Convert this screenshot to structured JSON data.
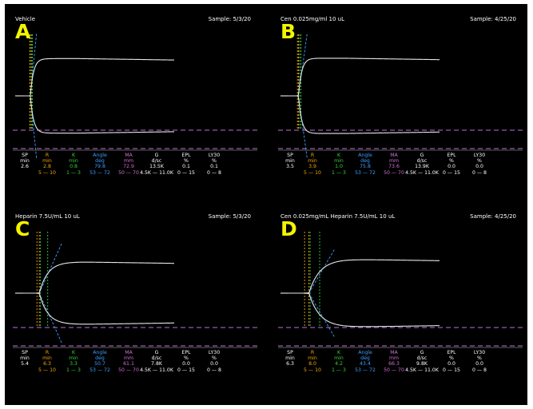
{
  "colors": {
    "background": "#000000",
    "trace": "#e8e8e8",
    "letter": "#f4f400",
    "reference_dashed": "#c070d8",
    "SP": "#ffffff",
    "R": "#f0a800",
    "K": "#38d038",
    "Angle": "#3aa0ff",
    "MA": "#d070d0",
    "G": "#ffffff",
    "EPL": "#ffffff",
    "LY30": "#ffffff"
  },
  "chart_data": [
    {
      "type": "line",
      "panel_letter": "A",
      "title": "Vehicle",
      "sample": "Sample: 5/3/20",
      "metrics": [
        {
          "name": "SP",
          "unit": "min",
          "value": "2.6",
          "range": ""
        },
        {
          "name": "R",
          "unit": "min",
          "value": "2.8",
          "range": "5 — 10"
        },
        {
          "name": "K",
          "unit": "min",
          "value": "0.8",
          "range": "1 — 3"
        },
        {
          "name": "Angle",
          "unit": "deg",
          "value": "79.8",
          "range": "53 — 72"
        },
        {
          "name": "MA",
          "unit": "mm",
          "value": "72.9",
          "range": "50 — 70"
        },
        {
          "name": "G",
          "unit": "d/sc",
          "value": "13.5K",
          "range": "4.5K — 11.0K"
        },
        {
          "name": "EPL",
          "unit": "%",
          "value": "0.1",
          "range": "0 — 15"
        },
        {
          "name": "LY30",
          "unit": "%",
          "value": "0.1",
          "range": "0 — 8"
        }
      ]
    },
    {
      "type": "line",
      "panel_letter": "B",
      "title": "Cen 0.025mg/ml 10 uL",
      "sample": "Sample: 4/25/20",
      "metrics": [
        {
          "name": "SP",
          "unit": "min",
          "value": "3.5",
          "range": ""
        },
        {
          "name": "R",
          "unit": "min",
          "value": "3.9",
          "range": "5 — 10"
        },
        {
          "name": "K",
          "unit": "min",
          "value": "1.0",
          "range": "1 — 3"
        },
        {
          "name": "Angle",
          "unit": "deg",
          "value": "75.8",
          "range": "53 — 72"
        },
        {
          "name": "MA",
          "unit": "mm",
          "value": "73.6",
          "range": "50 — 70"
        },
        {
          "name": "G",
          "unit": "d/sc",
          "value": "13.9K",
          "range": "4.5K — 11.0K"
        },
        {
          "name": "EPL",
          "unit": "%",
          "value": "0.0",
          "range": "0 — 15"
        },
        {
          "name": "LY30",
          "unit": "%",
          "value": "0.0",
          "range": "0 — 8"
        }
      ]
    },
    {
      "type": "line",
      "panel_letter": "C",
      "title": "Heparin 7.5U/mL 10 uL",
      "sample": "Sample: 5/3/20",
      "metrics": [
        {
          "name": "SP",
          "unit": "min",
          "value": "5.4",
          "range": ""
        },
        {
          "name": "R",
          "unit": "min",
          "value": "6.3",
          "range": "5 — 10"
        },
        {
          "name": "K",
          "unit": "min",
          "value": "3.3",
          "range": "1 — 3"
        },
        {
          "name": "Angle",
          "unit": "deg",
          "value": "50.7",
          "range": "53 — 72"
        },
        {
          "name": "MA",
          "unit": "mm",
          "value": "61.1",
          "range": "50 — 70"
        },
        {
          "name": "G",
          "unit": "d/sc",
          "value": "7.8K",
          "range": "4.5K — 11.0K"
        },
        {
          "name": "EPL",
          "unit": "%",
          "value": "0.0",
          "range": "0 — 15"
        },
        {
          "name": "LY30",
          "unit": "%",
          "value": "0.0",
          "range": "0 — 8"
        }
      ]
    },
    {
      "type": "line",
      "panel_letter": "D",
      "title": "Cen 0.025mg/mL Heparin 7.5U/mL 10 uL",
      "sample": "Sample: 4/25/20",
      "metrics": [
        {
          "name": "SP",
          "unit": "min",
          "value": "6.3",
          "range": ""
        },
        {
          "name": "R",
          "unit": "min",
          "value": "8.0",
          "range": "5 — 10"
        },
        {
          "name": "K",
          "unit": "min",
          "value": "4.2",
          "range": "1 — 3"
        },
        {
          "name": "Angle",
          "unit": "deg",
          "value": "43.4",
          "range": "53 — 72"
        },
        {
          "name": "MA",
          "unit": "mm",
          "value": "66.3",
          "range": "50 — 70"
        },
        {
          "name": "G",
          "unit": "d/sc",
          "value": "9.8K",
          "range": "4.5K — 11.0K"
        },
        {
          "name": "EPL",
          "unit": "%",
          "value": "0.0",
          "range": "0 — 15"
        },
        {
          "name": "LY30",
          "unit": "%",
          "value": "0.0",
          "range": "0 — 8"
        }
      ]
    }
  ]
}
